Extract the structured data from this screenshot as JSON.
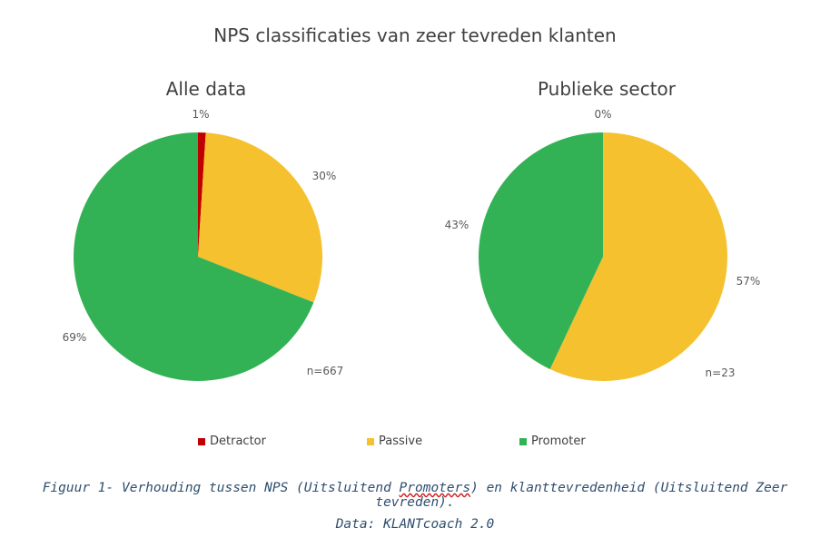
{
  "title": "NPS classificaties van zeer tevreden klanten",
  "legend": [
    {
      "label": "Detractor",
      "color": "#c00000"
    },
    {
      "label": "Passive",
      "color": "#f5c12e"
    },
    {
      "label": "Promoter",
      "color": "#33b255"
    }
  ],
  "chart_data": [
    {
      "type": "pie",
      "title": "Alle data",
      "note": "n=667",
      "categories": [
        "Detractor",
        "Passive",
        "Promoter"
      ],
      "values": [
        1,
        30,
        69
      ],
      "labels": [
        "1%",
        "30%",
        "69%"
      ]
    },
    {
      "type": "pie",
      "title": "Publieke sector",
      "note": "n=23",
      "categories": [
        "Detractor",
        "Passive",
        "Promoter"
      ],
      "values": [
        0,
        57,
        43
      ],
      "labels": [
        "0%",
        "57%",
        "43%"
      ]
    }
  ],
  "caption": {
    "line1_a": "Figuur 1- Verhouding tussen NPS (Uitsluitend ",
    "line1_b": "Promoters",
    "line1_c": ") en klanttevredenheid (Uitsluitend Zeer tevreden).",
    "line2": "Data: KLANTcoach 2.0"
  }
}
